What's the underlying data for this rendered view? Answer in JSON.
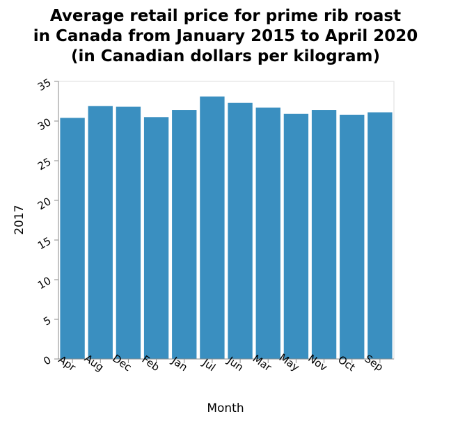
{
  "chart_data": {
    "type": "bar",
    "title_lines": [
      "Average retail price for prime rib roast",
      "in Canada from January 2015 to April 2020",
      "(in Canadian dollars per kilogram)"
    ],
    "xlabel": "Month",
    "ylabel": "2017",
    "categories": [
      "Apr",
      "Aug",
      "Dec",
      "Feb",
      "Jan",
      "Jul",
      "Jun",
      "Mar",
      "May",
      "Nov",
      "Oct",
      "Sep"
    ],
    "values": [
      30.4,
      31.9,
      31.8,
      30.5,
      31.4,
      33.1,
      32.3,
      31.7,
      30.9,
      31.4,
      30.8,
      31.1
    ],
    "ylim": [
      0,
      35
    ],
    "yticks": [
      0,
      5,
      10,
      15,
      20,
      25,
      30,
      35
    ],
    "bar_color": "#3a8fc0",
    "grid": false
  }
}
